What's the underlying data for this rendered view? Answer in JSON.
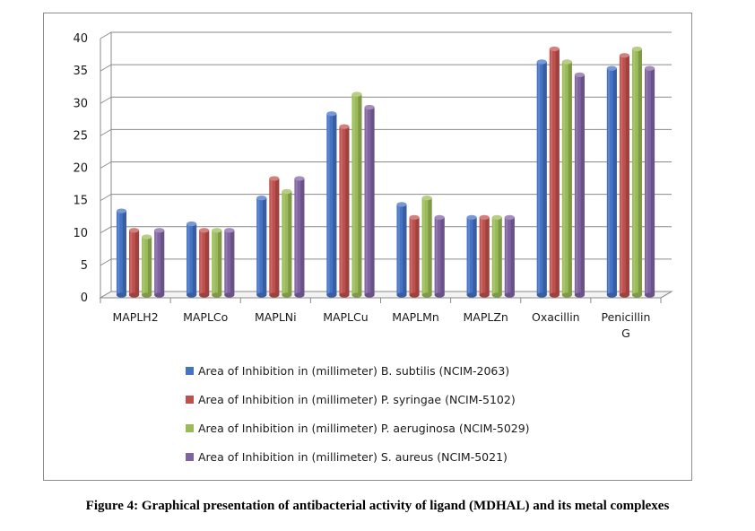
{
  "caption": "Figure 4: Graphical presentation of antibacterial activity of ligand (MDHAL) and its metal complexes",
  "chart_data": {
    "type": "bar",
    "style": "3d-clustered-column",
    "categories": [
      "MAPLH2",
      "MAPLCo",
      "MAPLNi",
      "MAPLCu",
      "MAPLMn",
      "MAPLZn",
      "Oxacillin",
      "Penicillin G"
    ],
    "series": [
      {
        "name": "Area of Inhibition in (millimeter) B. subtilis (NCIM-2063)",
        "color": "#4472c4",
        "values": [
          13,
          11,
          15,
          28,
          14,
          12,
          36,
          35
        ]
      },
      {
        "name": "Area of Inhibition in (millimeter) P. syringae (NCIM-5102)",
        "color": "#c0504d",
        "values": [
          10,
          10,
          18,
          26,
          12,
          12,
          38,
          37
        ]
      },
      {
        "name": "Area of Inhibition in (millimeter) P. aeruginosa (NCIM-5029)",
        "color": "#9bbb59",
        "values": [
          9,
          10,
          16,
          31,
          15,
          12,
          36,
          38
        ]
      },
      {
        "name": "Area of Inhibition in (millimeter) S. aureus (NCIM-5021)",
        "color": "#8064a2",
        "values": [
          10,
          10,
          18,
          29,
          12,
          12,
          34,
          35
        ]
      }
    ],
    "ylim": [
      0,
      40
    ],
    "yticks": [
      0,
      5,
      10,
      15,
      20,
      25,
      30,
      35,
      40
    ],
    "grid": true,
    "legend_position": "bottom",
    "title": "",
    "xlabel": "",
    "ylabel": ""
  }
}
